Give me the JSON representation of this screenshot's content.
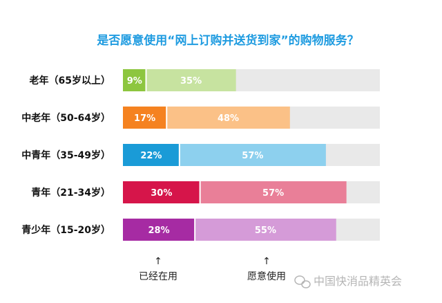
{
  "chart_data": {
    "type": "bar",
    "stacked": true,
    "orientation": "horizontal",
    "title": "是否愿意使用“网上订购并送货到家”的购物服务？",
    "categories": [
      "老年（65岁以上）",
      "中老年（50-64岁）",
      "中青年（35-49岁）",
      "青年（21-34岁）",
      "青少年（15-20岁）"
    ],
    "series": [
      {
        "name": "已经在用",
        "values": [
          9,
          17,
          22,
          30,
          28
        ],
        "labels": [
          "9%",
          "17%",
          "22%",
          "30%",
          "28%"
        ]
      },
      {
        "name": "愿意使用",
        "values": [
          35,
          48,
          57,
          57,
          55
        ],
        "labels": [
          "35%",
          "48%",
          "57%",
          "57%",
          "55%"
        ]
      }
    ],
    "xlim": [
      0,
      100
    ],
    "grid": false,
    "legend": "bottom",
    "colors": {
      "used": [
        "#8dc63f",
        "#f58220",
        "#1a9bd7",
        "#d6154a",
        "#a62ba3"
      ],
      "willing": [
        "#c7e3a0",
        "#fbc187",
        "#8dd0ee",
        "#e97f98",
        "#d59bd8"
      ],
      "remainder": "#e9e9e9",
      "title": "#1e9be0"
    }
  },
  "annotations": {
    "used": "已经在用",
    "willing": "愿意使用",
    "arrow": "↑"
  },
  "watermark": "中国快消品精英会"
}
